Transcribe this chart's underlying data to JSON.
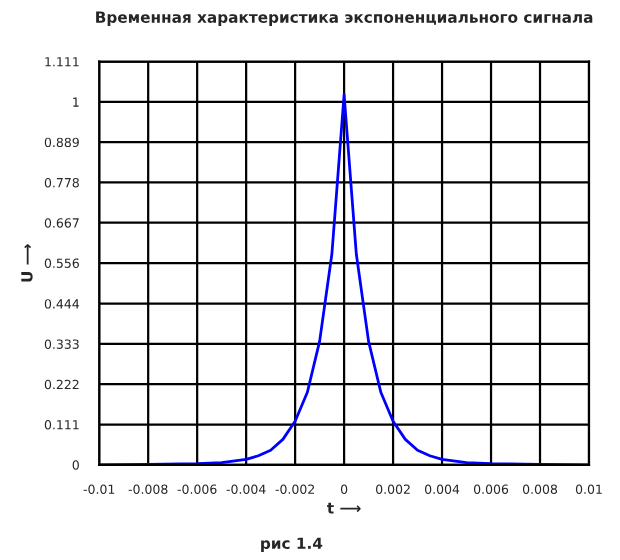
{
  "chart_data": {
    "type": "line",
    "title": "Временная характеристика экспоненциального сигнала",
    "xlabel": "t ⟶",
    "ylabel": "U ⟶",
    "annotations": [
      "рис 1.4"
    ],
    "x": [
      -0.01,
      -0.008,
      -0.006,
      -0.005,
      -0.004,
      -0.0035,
      -0.003,
      -0.0025,
      -0.002,
      -0.0015,
      -0.001,
      -0.0005,
      0,
      0.0005,
      0.001,
      0.0015,
      0.002,
      0.0025,
      0.003,
      0.0035,
      0.004,
      0.005,
      0.006,
      0.008,
      0.01
    ],
    "series": [
      {
        "color": "#0000ff",
        "values": [
          0,
          0.001,
          0.003,
          0.006,
          0.015,
          0.025,
          0.04,
          0.07,
          0.12,
          0.2,
          0.34,
          0.58,
          1.02,
          0.58,
          0.34,
          0.2,
          0.12,
          0.07,
          0.04,
          0.025,
          0.015,
          0.006,
          0.003,
          0.001,
          0
        ]
      }
    ],
    "xlim": [
      -0.01,
      0.01
    ],
    "xticks": [
      -0.01,
      -0.008,
      -0.006,
      -0.004,
      -0.002,
      0,
      0.002,
      0.004,
      0.006,
      0.008,
      0.01
    ],
    "ylim": [
      0,
      1.111
    ],
    "yticks": [
      0,
      0.111,
      0.222,
      0.333,
      0.444,
      0.556,
      0.667,
      0.778,
      0.889,
      1,
      1.111
    ],
    "grid": true,
    "legend": false,
    "marker": "none",
    "line_style": "solid"
  }
}
